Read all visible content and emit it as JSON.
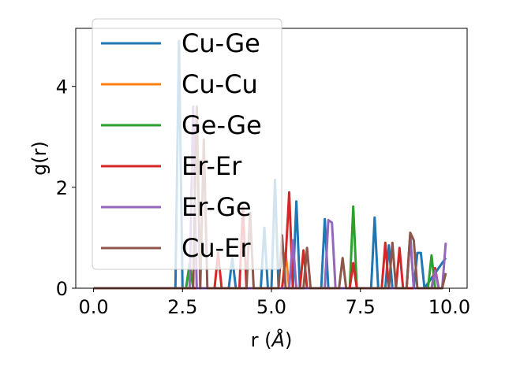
{
  "chart_data": {
    "type": "line",
    "xlabel_main": "r (",
    "xlabel_unit": "Å",
    "xlabel_end": ")",
    "ylabel": "g(r)",
    "xlim": [
      -0.5,
      10.5
    ],
    "ylim": [
      0,
      5.15
    ],
    "xticks": [
      0.0,
      2.5,
      5.0,
      7.5,
      10.0
    ],
    "xtick_labels": [
      "0.0",
      "2.5",
      "5.0",
      "7.5",
      "10.0"
    ],
    "yticks": [
      0,
      2,
      4
    ],
    "ytick_labels": [
      "0",
      "2",
      "4"
    ],
    "grid": false,
    "legend_position": "upper-left",
    "series": [
      {
        "name": "Cu-Ge",
        "color": "#1f77b4",
        "x": [
          0,
          2.2,
          2.3,
          2.4,
          2.5,
          2.6,
          3.8,
          3.9,
          4.0,
          4.1,
          4.7,
          4.8,
          4.9,
          5.0,
          5.1,
          5.2,
          5.6,
          5.7,
          5.8,
          6.4,
          6.5,
          6.6,
          7.8,
          7.9,
          8.0,
          8.2,
          8.3,
          8.4,
          8.8,
          8.9,
          9.0,
          9.1,
          9.2,
          9.3,
          9.9
        ],
        "y": [
          0,
          0,
          0,
          4.9,
          0,
          0,
          0,
          0.6,
          0,
          0,
          0,
          1.2,
          0,
          0,
          2.15,
          0,
          0,
          1.72,
          0,
          0,
          1.37,
          0,
          0,
          1.4,
          0,
          0,
          0.85,
          0,
          0,
          1.05,
          0,
          0.7,
          0.7,
          0,
          0.6
        ]
      },
      {
        "name": "Cu-Cu",
        "color": "#ff7f0e",
        "x": [
          0,
          2.4,
          2.5,
          2.6,
          5.3,
          5.4,
          5.5
        ],
        "y": [
          0,
          0,
          0,
          0,
          0,
          0.7,
          0
        ]
      },
      {
        "name": "Ge-Ge",
        "color": "#2ca02c",
        "x": [
          0,
          2.6,
          2.7,
          2.8,
          7.2,
          7.3,
          7.4,
          9.4,
          9.5,
          9.6
        ],
        "y": [
          0,
          0,
          0.5,
          0,
          0,
          1.62,
          0,
          0,
          0.65,
          0
        ]
      },
      {
        "name": "Er-Er",
        "color": "#d62728",
        "x": [
          0,
          3.4,
          3.5,
          3.6,
          4.1,
          4.2,
          4.3,
          5.3,
          5.4,
          5.5,
          5.6,
          5.8,
          5.9,
          6.0,
          7.2,
          7.3,
          7.4,
          8.1,
          8.2,
          8.3,
          8.5,
          8.6,
          8.7,
          9.5,
          9.6,
          9.7,
          9.8
        ],
        "y": [
          0,
          0,
          0.7,
          0,
          0,
          1.6,
          0,
          0,
          0.6,
          1.9,
          0,
          0,
          0.75,
          0,
          0,
          0.5,
          0,
          0,
          0.9,
          0,
          0,
          0.8,
          0,
          0,
          0.4,
          0,
          0
        ]
      },
      {
        "name": "Er-Ge",
        "color": "#9467bd",
        "x": [
          0,
          2.7,
          2.8,
          2.9,
          3.0,
          5.5,
          5.6,
          5.7,
          6.5,
          6.6,
          6.7,
          6.8,
          6.9,
          8.8,
          8.9,
          9.0,
          9.5,
          9.6,
          9.7,
          9.8,
          9.9
        ],
        "y": [
          0,
          0,
          3.6,
          0,
          0,
          0,
          0.95,
          0,
          0,
          1.35,
          1.3,
          0,
          0,
          0,
          1.05,
          0,
          0,
          0.35,
          0,
          0,
          0.9
        ]
      },
      {
        "name": "Cu-Er",
        "color": "#8c564b",
        "x": [
          0,
          2.8,
          2.9,
          3.0,
          3.1,
          3.2,
          4.3,
          4.4,
          4.5,
          5.2,
          5.3,
          5.4,
          5.9,
          6.0,
          6.1,
          6.9,
          7.0,
          7.1,
          8.3,
          8.4,
          8.5,
          8.8,
          8.9,
          9.0,
          9.1,
          9.8,
          9.9
        ],
        "y": [
          0,
          0,
          3.6,
          0,
          2.95,
          0,
          0,
          1.5,
          0,
          0,
          1.05,
          0,
          0,
          0.8,
          0,
          0,
          0.6,
          0,
          0,
          0.9,
          0,
          0,
          1.1,
          0.95,
          0,
          0,
          0.3
        ]
      }
    ]
  }
}
